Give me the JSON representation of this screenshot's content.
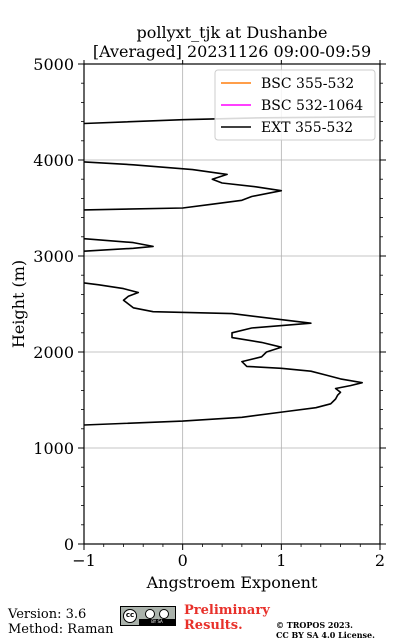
{
  "chart_data": {
    "type": "line",
    "title_line1": "pollyxt_tjk at Dushanbe",
    "title_line2": "[Averaged] 20231126 09:00-09:59",
    "xlabel": "Angstroem Exponent",
    "ylabel": "Height (m)",
    "xlim": [
      -1,
      2
    ],
    "ylim": [
      0,
      5000
    ],
    "x_ticks": [
      "−1",
      "0",
      "1",
      "2"
    ],
    "y_ticks": [
      "0",
      "1000",
      "2000",
      "3000",
      "4000",
      "5000"
    ],
    "grid": true,
    "legend_position": "top-right",
    "series": [
      {
        "name": "BSC 355-532",
        "color": "#ff7f0e",
        "points": []
      },
      {
        "name": "BSC 532-1064",
        "color": "#ff00ff",
        "points": []
      },
      {
        "name": "EXT 355-532",
        "color": "#000000",
        "segments": [
          [
            [
              -1.0,
              1240
            ],
            [
              0.0,
              1280
            ],
            [
              0.6,
              1320
            ],
            [
              1.05,
              1380
            ],
            [
              1.35,
              1420
            ],
            [
              1.5,
              1460
            ],
            [
              1.55,
              1510
            ],
            [
              1.57,
              1550
            ],
            [
              1.6,
              1580
            ],
            [
              1.55,
              1620
            ],
            [
              1.7,
              1650
            ],
            [
              1.82,
              1680
            ],
            [
              1.6,
              1720
            ],
            [
              1.45,
              1760
            ],
            [
              1.3,
              1800
            ],
            [
              1.0,
              1830
            ],
            [
              0.65,
              1850
            ],
            [
              0.6,
              1900
            ],
            [
              0.8,
              1950
            ],
            [
              0.85,
              2000
            ],
            [
              1.0,
              2050
            ],
            [
              0.8,
              2100
            ],
            [
              0.5,
              2150
            ],
            [
              0.5,
              2200
            ],
            [
              0.7,
              2250
            ],
            [
              1.3,
              2300
            ],
            [
              0.9,
              2350
            ],
            [
              0.5,
              2400
            ],
            [
              -0.3,
              2420
            ],
            [
              -0.5,
              2460
            ],
            [
              -0.55,
              2500
            ],
            [
              -0.6,
              2540
            ],
            [
              -0.55,
              2580
            ],
            [
              -0.45,
              2620
            ],
            [
              -0.6,
              2660
            ],
            [
              -0.85,
              2700
            ],
            [
              -1.0,
              2720
            ]
          ],
          [
            [
              -1.0,
              3050
            ],
            [
              -0.5,
              3080
            ],
            [
              -0.3,
              3100
            ],
            [
              -0.5,
              3140
            ],
            [
              -1.0,
              3180
            ]
          ],
          [
            [
              -1.0,
              3480
            ],
            [
              0.0,
              3500
            ],
            [
              0.3,
              3540
            ],
            [
              0.6,
              3580
            ],
            [
              0.7,
              3620
            ],
            [
              1.0,
              3680
            ],
            [
              0.75,
              3720
            ],
            [
              0.4,
              3760
            ],
            [
              0.3,
              3800
            ],
            [
              0.45,
              3850
            ],
            [
              0.1,
              3900
            ],
            [
              -0.5,
              3950
            ],
            [
              -1.0,
              3980
            ]
          ],
          [
            [
              -1.0,
              4380
            ],
            [
              0.0,
              4420
            ],
            [
              0.8,
              4440
            ],
            [
              1.95,
              4450
            ]
          ]
        ]
      }
    ]
  },
  "footer": {
    "version": "Version: 3.6",
    "method": "Method: Raman",
    "prelim_line1": "Preliminary",
    "prelim_line2": "Results.",
    "copyright_line1": "© TROPOS 2023.",
    "copyright_line2": "CC BY SA 4.0 License.",
    "badge_text": "BY   SA",
    "badge_mark": "cc"
  },
  "colors": {
    "preliminary": "#e8302a"
  }
}
